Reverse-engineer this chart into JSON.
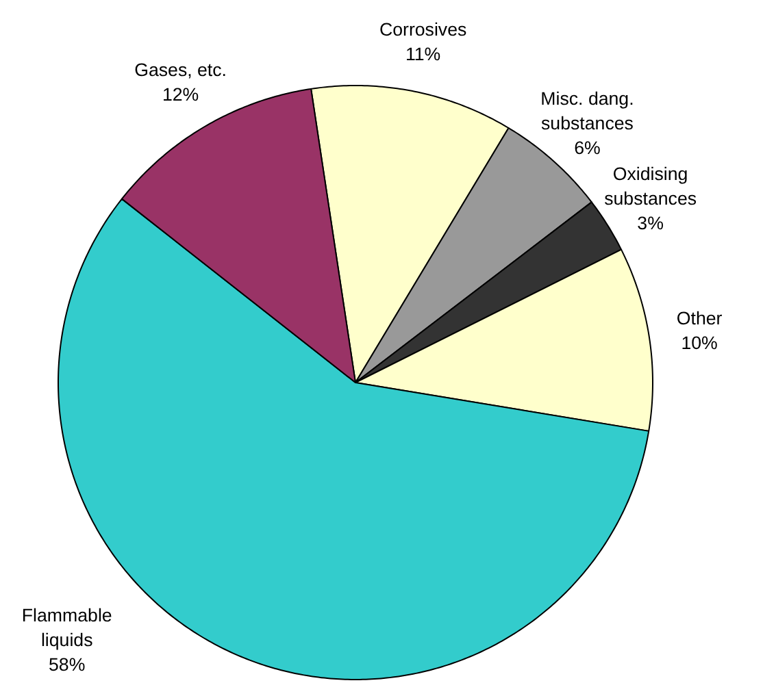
{
  "chart_data": {
    "type": "pie",
    "categories": [
      "Corrosives",
      "Misc. dang.\nsubstances",
      "Oxidising\nsubstances",
      "Other",
      "Flammable\nliquids",
      "Gases, etc."
    ],
    "values": [
      11,
      6,
      3,
      10,
      58,
      12
    ],
    "value_labels": [
      "11%",
      "6%",
      "3%",
      "10%",
      "58%",
      "12%"
    ],
    "colors": [
      "#ffffcc",
      "#999999",
      "#333333",
      "#ffffcc",
      "#33cccc",
      "#993366"
    ]
  }
}
